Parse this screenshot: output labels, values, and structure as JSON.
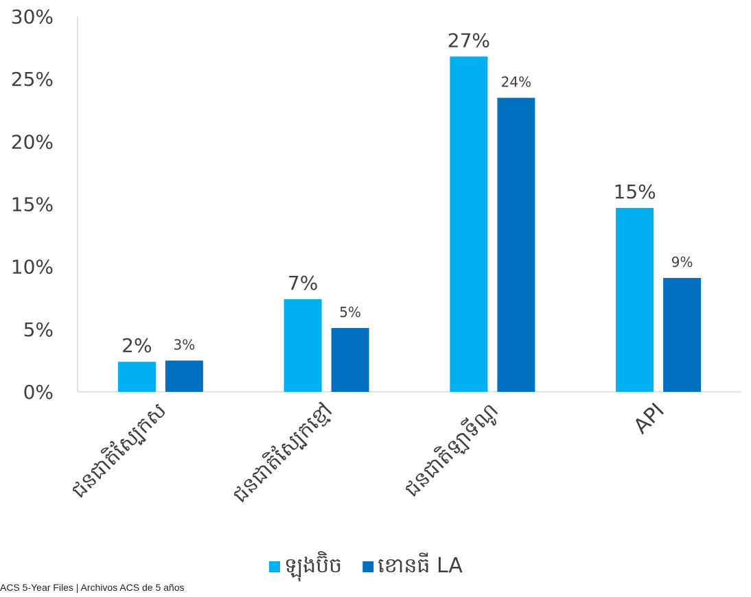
{
  "chart_data": {
    "type": "bar",
    "categories": [
      "ជនជាតិស្បែកស",
      "ជនជាតិស្បែកខ្មៅ",
      "ជនជាតិឡាទីណូ",
      "API"
    ],
    "series": [
      {
        "name": "ឡុងប៊ិច",
        "color": "#00b0f0",
        "values": [
          2.4,
          7.4,
          26.8,
          14.7
        ],
        "labels": [
          "2%",
          "7%",
          "27%",
          "15%"
        ]
      },
      {
        "name": "ខោនធី LA",
        "color": "#0070c0",
        "values": [
          2.5,
          5.1,
          23.5,
          9.1
        ],
        "labels": [
          "3%",
          "5%",
          "24%",
          "9%"
        ]
      }
    ],
    "ylim": [
      0,
      30
    ],
    "yticks": [
      0,
      5,
      10,
      15,
      20,
      25,
      30
    ],
    "ytick_labels": [
      "0%",
      "5%",
      "10%",
      "15%",
      "20%",
      "25%",
      "30%"
    ],
    "legend_position": "bottom",
    "grid": false
  },
  "source": "ACS 5-Year Files | Archivos ACS de 5 años"
}
